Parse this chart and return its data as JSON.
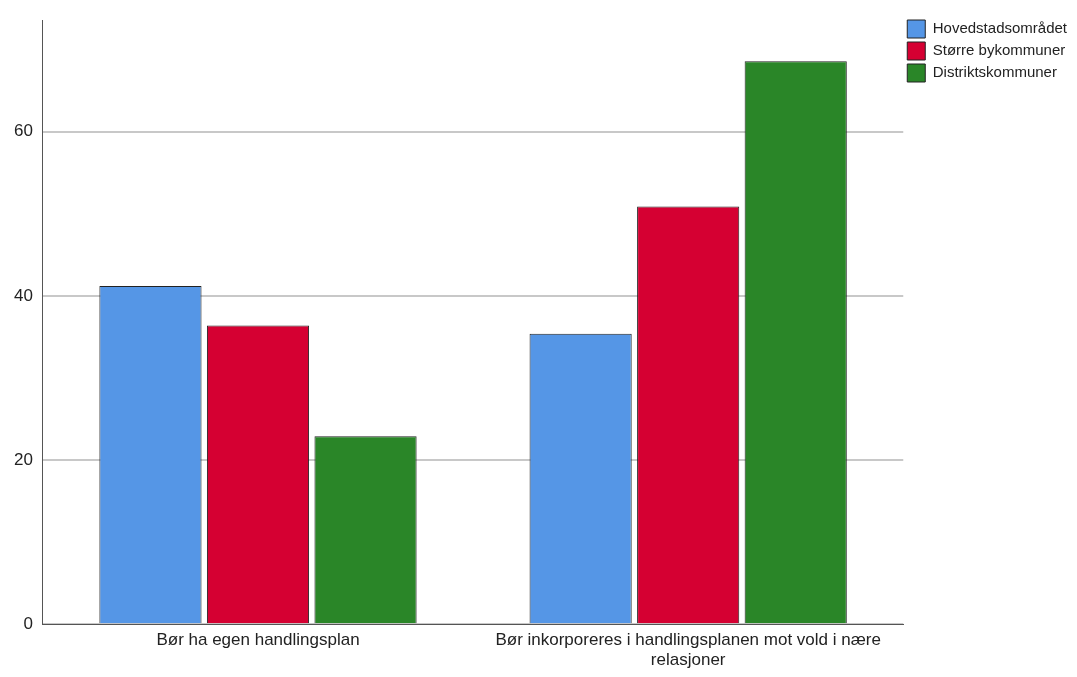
{
  "chart_data": {
    "type": "bar",
    "categories": [
      "Bør ha egen handlingsplan",
      "Bør inkorporeres i handlingsplanen mot vold i nære relasjoner"
    ],
    "series": [
      {
        "name": "Hovedstadsområdet",
        "color": "#5596e6",
        "values": [
          41.2,
          35.4
        ]
      },
      {
        "name": "Større bykommuner",
        "color": "#d50032",
        "values": [
          36.4,
          50.9
        ]
      },
      {
        "name": "Distriktskommuner",
        "color": "#2a8628",
        "values": [
          22.9,
          68.6
        ]
      }
    ],
    "ylim": [
      0,
      73.6
    ],
    "yticks": [
      0,
      20,
      40,
      60
    ],
    "grid": "y",
    "legend": "top right"
  }
}
